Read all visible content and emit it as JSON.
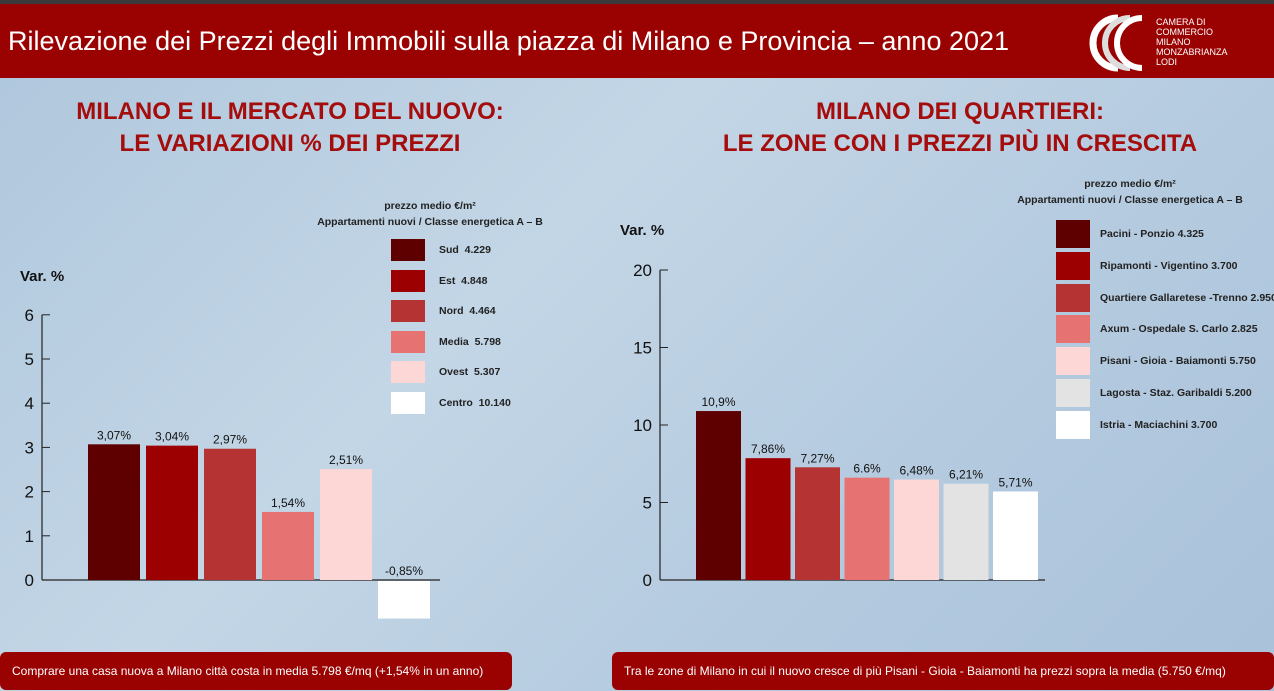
{
  "header": {
    "title": "Rilevazione dei Prezzi degli Immobili sulla piazza di Milano e Provincia – anno 2021",
    "logo_text": [
      "CAMERA DI",
      "COMMERCIO",
      "MILANO",
      "MONZABRIANZA",
      "LODI"
    ]
  },
  "chart_data": [
    {
      "type": "bar",
      "title": [
        "MILANO E IL MERCATO DEL NUOVO:",
        "LE VARIAZIONI % DEI PREZZI"
      ],
      "ylabel": "Var. %",
      "ylim": [
        -0.85,
        6
      ],
      "yticks": [
        0,
        1,
        2,
        3,
        4,
        5,
        6
      ],
      "legend_title": [
        "prezzo medio €/m²",
        "Appartamenti nuovi / Classe energetica A – B"
      ],
      "categories": [
        "Sud",
        "Est",
        "Nord",
        "Media",
        "Ovest",
        "Centro"
      ],
      "prices": [
        "4.229",
        "4.848",
        "4.464",
        "5.798",
        "5.307",
        "10.140"
      ],
      "values": [
        3.07,
        3.04,
        2.97,
        1.54,
        2.51,
        -0.85
      ],
      "labels": [
        "3,07%",
        "3,04%",
        "2,97%",
        "1,54%",
        "2,51%",
        "-0,85%"
      ],
      "colors": [
        "#5e0000",
        "#9c0000",
        "#b53333",
        "#e77272",
        "#fdd6d6",
        "#ffffff"
      ]
    },
    {
      "type": "bar",
      "title": [
        "MILANO DEI QUARTIERI:",
        "LE ZONE CON I PREZZI PIÙ IN CRESCITA"
      ],
      "ylabel": "Var. %",
      "ylim": [
        0,
        20
      ],
      "yticks": [
        0,
        5,
        10,
        15,
        20
      ],
      "legend_title": [
        "prezzo medio €/m²",
        "Appartamenti nuovi / Classe energetica A – B"
      ],
      "categories": [
        "Pacini - Ponzio",
        "Ripamonti - Vigentino",
        "Quartiere Gallaretese -Trenno",
        "Axum - Ospedale S. Carlo",
        "Pisani - Gioia - Baiamonti",
        "Lagosta - Staz. Garibaldi",
        "Istria - Maciachini"
      ],
      "prices": [
        "4.325",
        "3.700",
        "2.950",
        "2.825",
        "5.750",
        "5.200",
        "3.700"
      ],
      "values": [
        10.9,
        7.86,
        7.27,
        6.6,
        6.48,
        6.21,
        5.71
      ],
      "labels": [
        "10,9%",
        "7,86%",
        "7,27%",
        "6.6%",
        "6,48%",
        "6,21%",
        "5,71%"
      ],
      "colors": [
        "#5e0000",
        "#9c0000",
        "#b53333",
        "#e77272",
        "#fdd6d6",
        "#e3e3e3",
        "#ffffff"
      ]
    }
  ],
  "footer": {
    "left": "Comprare una casa nuova a Milano città costa in media 5.798 €/mq (+1,54% in un anno)",
    "right": "Tra le zone di Milano in cui il nuovo cresce di più Pisani - Gioia - Baiamonti ha prezzi sopra la media (5.750  €/mq)"
  }
}
